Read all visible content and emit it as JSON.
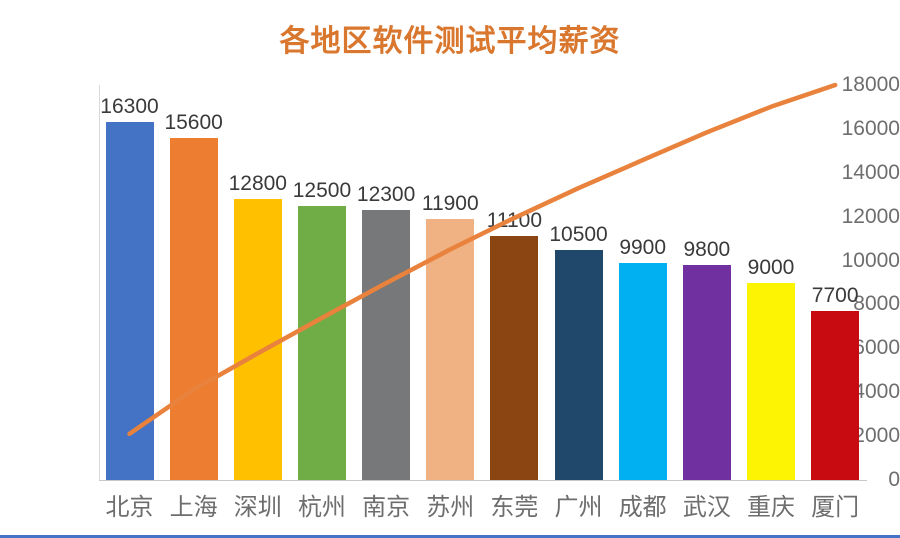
{
  "chart_data": {
    "type": "pareto",
    "title": "各地区软件测试平均薪资",
    "categories": [
      "北京",
      "上海",
      "深圳",
      "杭州",
      "南京",
      "苏州",
      "东莞",
      "广州",
      "成都",
      "武汉",
      "重庆",
      "厦门"
    ],
    "values": [
      16300,
      15600,
      12800,
      12500,
      12300,
      11900,
      11100,
      10500,
      9900,
      9800,
      9000,
      7700
    ],
    "bar_colors": [
      "#4472C4",
      "#ED7D31",
      "#FFC000",
      "#70AD47",
      "#77787A",
      "#F0B183",
      "#8B4512",
      "#20486A",
      "#00B0F0",
      "#7030A0",
      "#FCF403",
      "#C80B10"
    ],
    "line": {
      "name": "cumulative-share-line",
      "color": "#E8823C",
      "cumulative_percent": [
        11.69,
        22.88,
        32.07,
        41.03,
        49.86,
        58.39,
        66.36,
        73.89,
        80.99,
        88.02,
        94.48,
        100
      ]
    },
    "yticks": [
      0,
      2000,
      4000,
      6000,
      8000,
      10000,
      12000,
      14000,
      16000,
      18000
    ],
    "ylim": [
      0,
      18000
    ],
    "xlabel": "",
    "ylabel": "",
    "grid": false,
    "legend": false,
    "title_color": "#D9772F",
    "axis_label_color": "#6E6E6E",
    "value_label_color": "#3A3A3A",
    "bottom_border_color": "#4472C4"
  }
}
